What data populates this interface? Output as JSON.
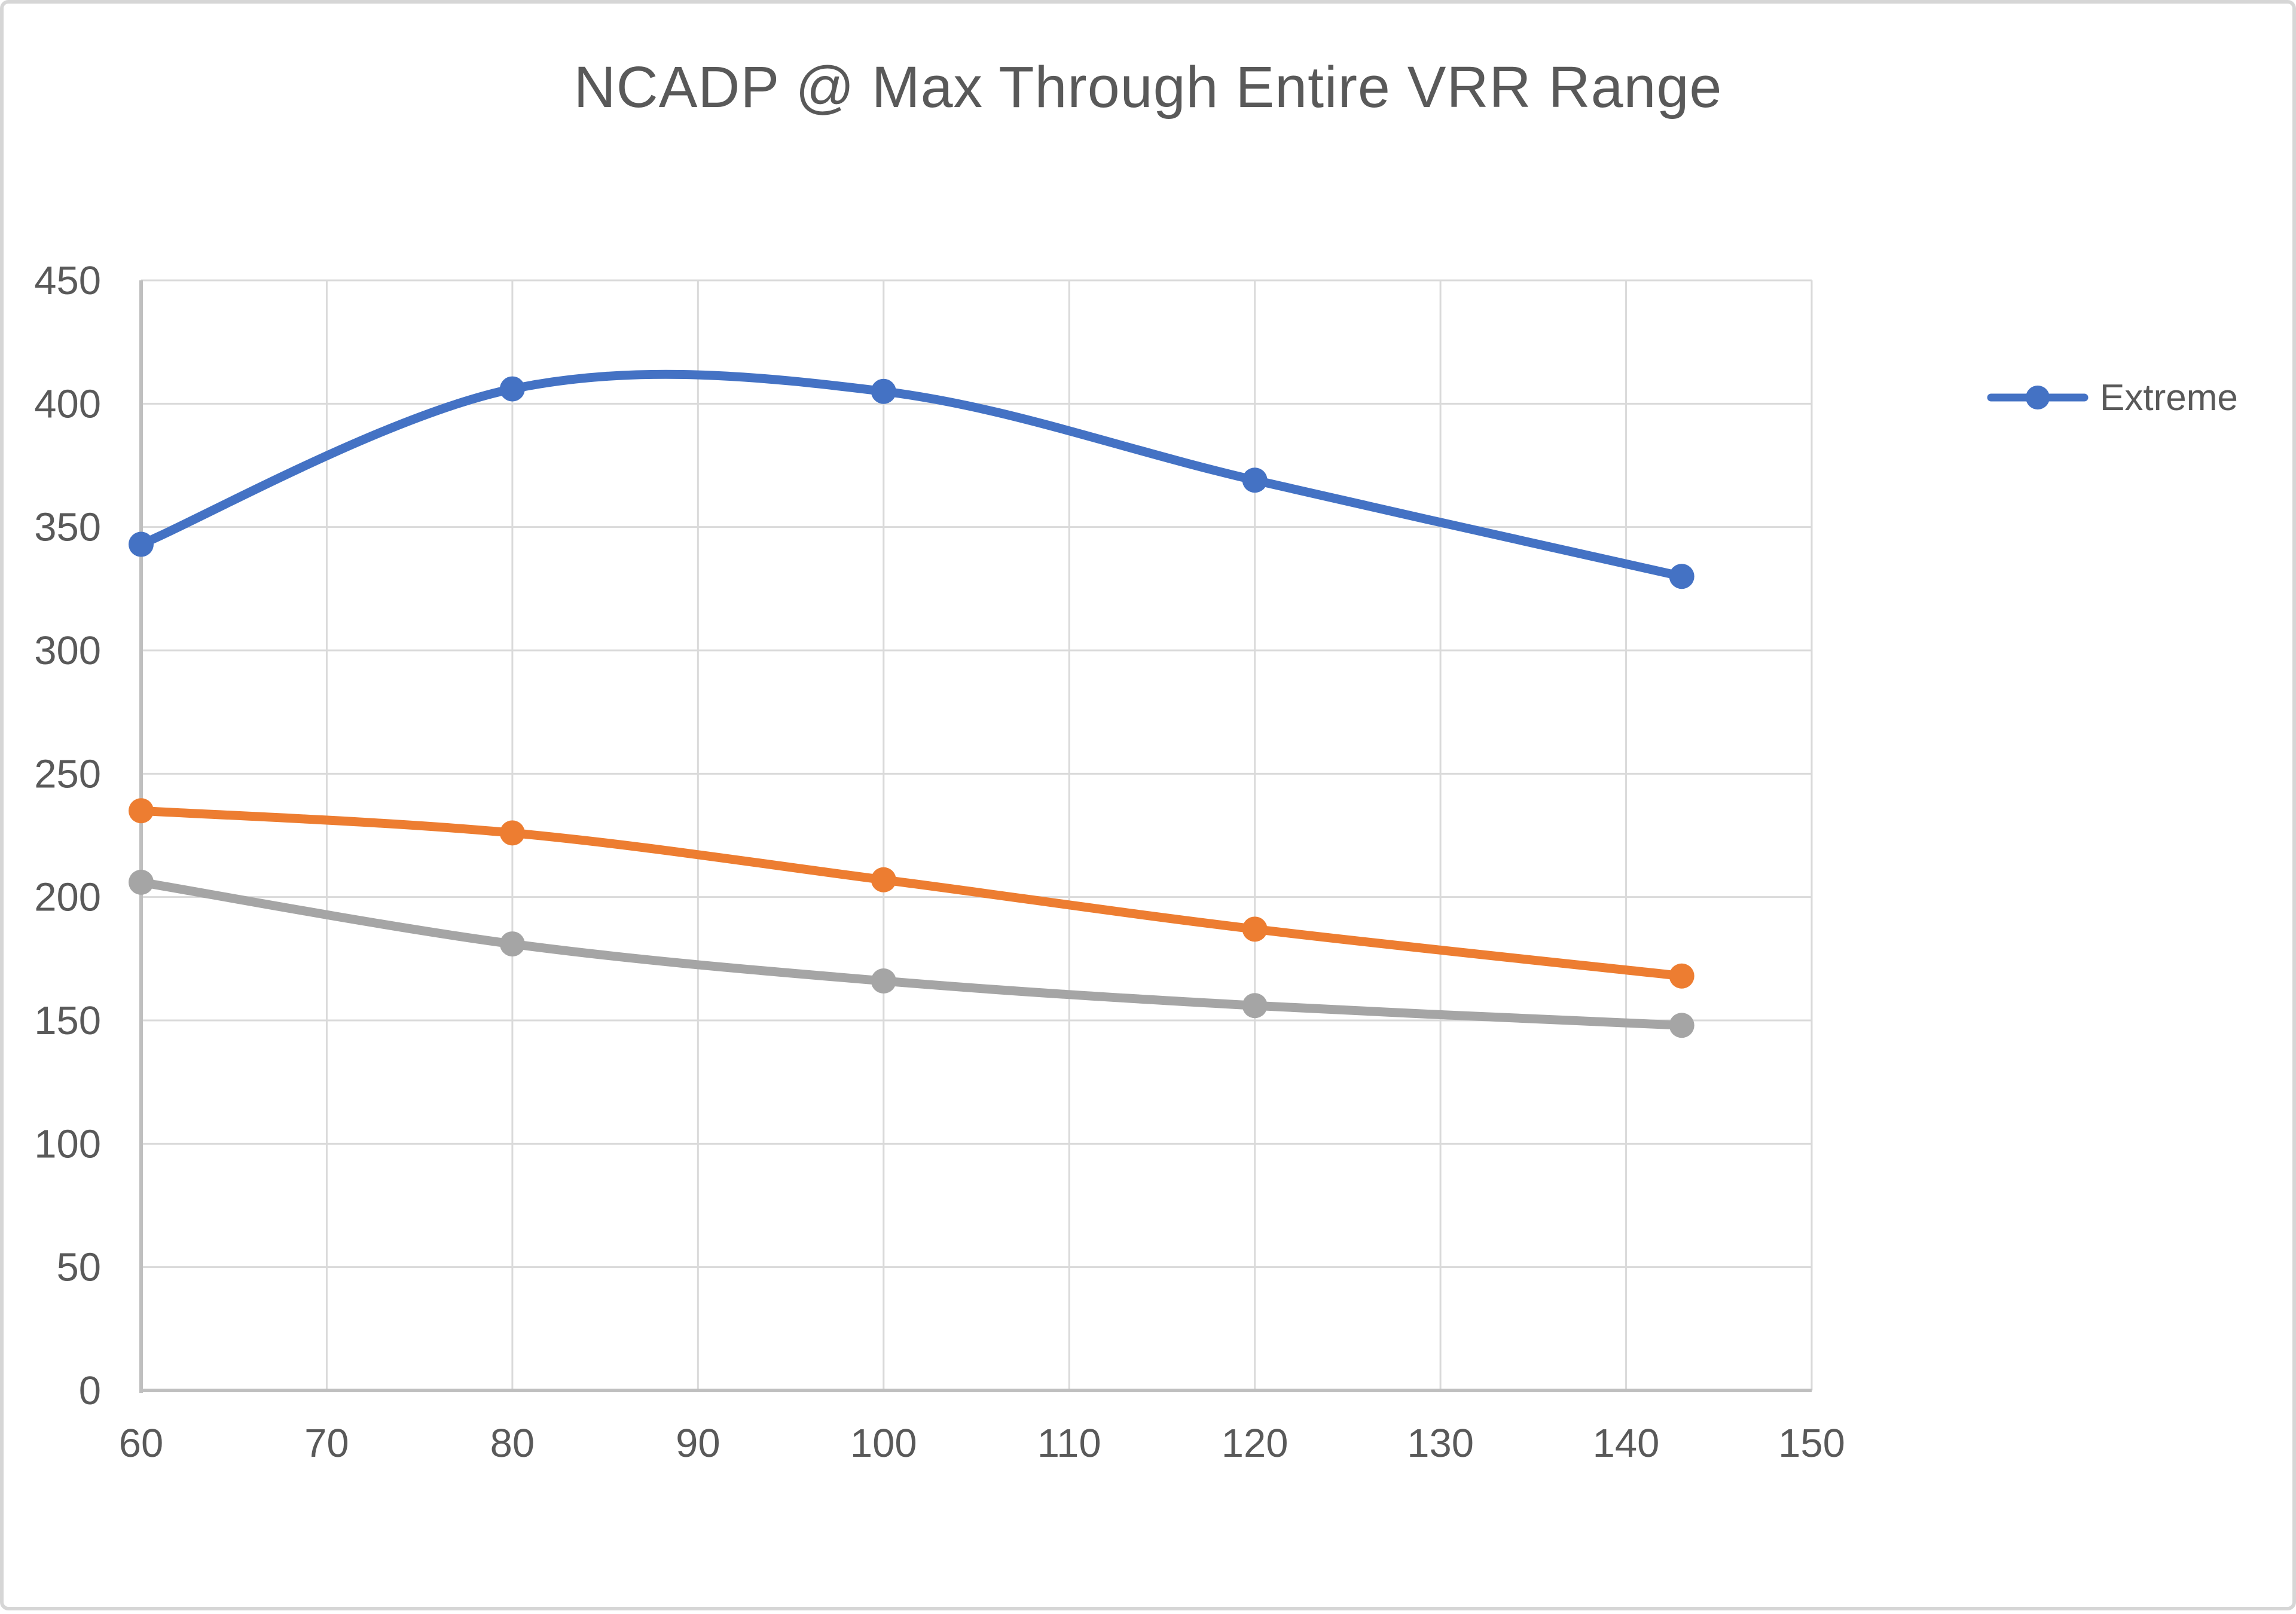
{
  "title": "NCADP @ Max Through Entire VRR Range",
  "legend": {
    "position": "right",
    "entries": [
      {
        "label": "Extreme",
        "color": "#4472C4"
      }
    ]
  },
  "colors": {
    "series_blue": "#4472C4",
    "series_orange": "#ED7D31",
    "series_gray": "#A5A5A5",
    "gridline": "#DADADA",
    "axis_line": "#BFBFBF",
    "text": "#595959",
    "frame_border": "#D6D6D6",
    "background": "#FFFFFF"
  },
  "chart_data": {
    "type": "line",
    "title": "NCADP @ Max Through Entire VRR Range",
    "x": [
      60,
      80,
      100,
      120,
      143
    ],
    "series": [
      {
        "name": "Extreme",
        "color": "#4472C4",
        "values": [
          343,
          406,
          405,
          369,
          330
        ],
        "in_legend": true
      },
      {
        "name": "",
        "color": "#ED7D31",
        "values": [
          235,
          226,
          207,
          187,
          168
        ],
        "in_legend": false
      },
      {
        "name": "",
        "color": "#A5A5A5",
        "values": [
          206,
          181,
          166,
          156,
          148
        ],
        "in_legend": false
      }
    ],
    "xlabel": "",
    "ylabel": "",
    "xlim": [
      60,
      150
    ],
    "ylim": [
      0,
      450
    ],
    "x_ticks": [
      60,
      70,
      80,
      90,
      100,
      110,
      120,
      130,
      140,
      150
    ],
    "y_ticks": [
      0,
      50,
      100,
      150,
      200,
      250,
      300,
      350,
      400,
      450
    ],
    "grid": true,
    "smooth": true,
    "markers": true,
    "legend_position": "right"
  }
}
